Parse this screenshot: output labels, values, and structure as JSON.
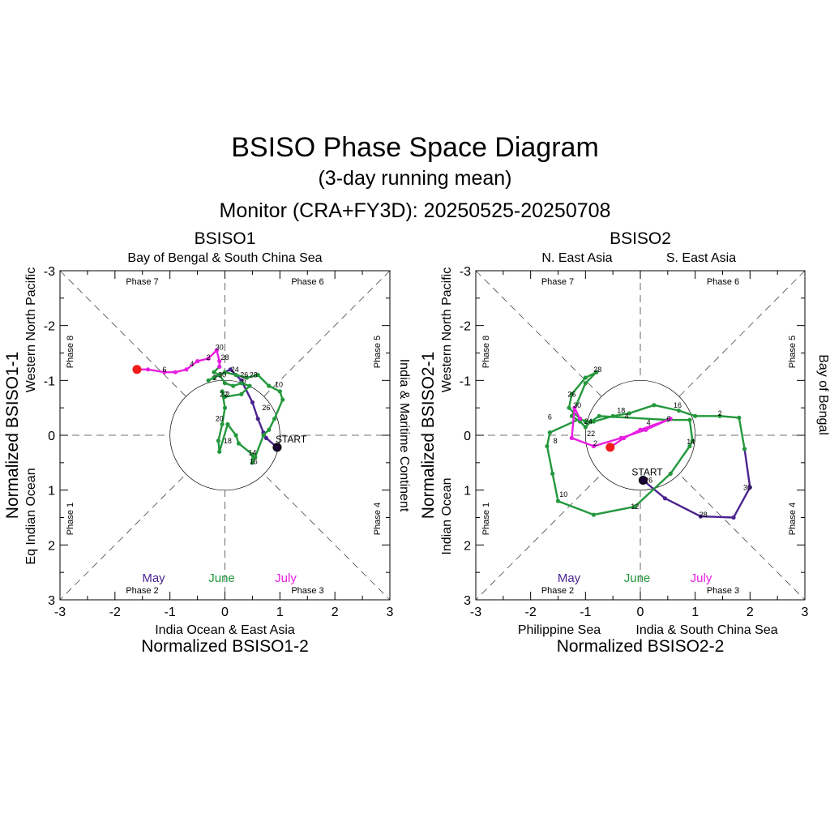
{
  "figure": {
    "title": "BSISO Phase Space Diagram",
    "subtitle": "(3-day running mean)",
    "monitor": "Monitor (CRA+FY3D): 20250525-20250708"
  },
  "colors": {
    "May": "#4b2391",
    "June": "#23983c",
    "July": "#e81ee0",
    "start": "#000000",
    "end": "#f21b1b"
  },
  "chart_data": [
    {
      "type": "scatter",
      "title": "BSISO1",
      "xlabel": "Normalized BSISO1-2",
      "ylabel": "Normalized BSISO1-1",
      "xlim": [
        -3,
        3
      ],
      "ylim": [
        -3,
        3
      ],
      "y_inverted": true,
      "xticks": [
        "-3",
        "-2",
        "-1",
        "0",
        "1",
        "2",
        "3"
      ],
      "yticks": [
        "-3",
        "-2",
        "-1",
        "0",
        "1",
        "2",
        "3"
      ],
      "regions": {
        "top_left": "Bay of Bengal & South China Sea",
        "top_right": "",
        "bottom_left": "India Ocean & East Asia",
        "bottom_right": "",
        "left": "Eq Indian Ocean",
        "left2": "Western North Pacific",
        "right": "India & Maritime Continent"
      },
      "phases": [
        "Phase 7",
        "Phase 6",
        "Phase 5",
        "Phase 4",
        "Phase 3",
        "Phase 2",
        "Phase 1",
        "Phase 8"
      ],
      "months": [
        "May",
        "June",
        "July"
      ],
      "start_label": "START",
      "series": [
        {
          "name": "May",
          "points": [
            [
              0.95,
              0.22
            ],
            [
              0.75,
              0.05
            ],
            [
              0.7,
              -0.05
            ],
            [
              0.6,
              -0.3
            ],
            [
              0.5,
              -0.6
            ],
            [
              0.3,
              -1.0
            ],
            [
              0.1,
              -1.2
            ],
            [
              -0.1,
              -1.1
            ],
            [
              -0.2,
              -1.05
            ]
          ]
        },
        {
          "name": "June",
          "points": [
            [
              -0.2,
              -1.05
            ],
            [
              -0.3,
              -1.0
            ],
            [
              0.0,
              -1.15
            ],
            [
              0.2,
              -1.1
            ],
            [
              0.4,
              -1.05
            ],
            [
              0.6,
              -1.1
            ],
            [
              0.8,
              -0.9
            ],
            [
              1.0,
              -0.8
            ],
            [
              1.05,
              -0.65
            ],
            [
              0.9,
              -0.3
            ],
            [
              0.8,
              -0.1
            ],
            [
              0.7,
              0.0
            ],
            [
              0.55,
              0.4
            ],
            [
              0.5,
              0.5
            ],
            [
              0.5,
              0.35
            ],
            [
              0.25,
              0.15
            ],
            [
              0.2,
              0.0
            ],
            [
              0.05,
              -0.2
            ],
            [
              -0.1,
              0.3
            ],
            [
              -0.12,
              0.1
            ],
            [
              -0.05,
              -0.2
            ],
            [
              0.0,
              -0.5
            ],
            [
              -0.05,
              -0.8
            ],
            [
              0.0,
              -0.7
            ],
            [
              0.3,
              -0.75
            ],
            [
              0.45,
              -0.9
            ],
            [
              0.3,
              -0.95
            ],
            [
              0.15,
              -0.9
            ],
            [
              0.0,
              -0.95
            ],
            [
              -0.1,
              -1.1
            ],
            [
              -0.2,
              -1.15
            ],
            [
              -0.1,
              -1.25
            ]
          ]
        },
        {
          "name": "July",
          "points": [
            [
              -0.1,
              -1.25
            ],
            [
              -0.1,
              -1.35
            ],
            [
              -0.15,
              -1.55
            ],
            [
              -0.3,
              -1.4
            ],
            [
              -0.5,
              -1.35
            ],
            [
              -0.7,
              -1.2
            ],
            [
              -0.9,
              -1.15
            ],
            [
              -1.1,
              -1.15
            ],
            [
              -1.4,
              -1.2
            ],
            [
              -1.6,
              -1.2
            ]
          ]
        }
      ],
      "day_labels": [
        {
          "t": "30",
          "x": -0.1,
          "y": -1.6
        },
        {
          "t": "28",
          "x": 0.0,
          "y": -1.42
        },
        {
          "t": "2",
          "x": -0.3,
          "y": -1.42
        },
        {
          "t": "4",
          "x": -0.6,
          "y": -1.3
        },
        {
          "t": "6",
          "x": -1.1,
          "y": -1.2
        },
        {
          "t": "24",
          "x": 0.18,
          "y": -1.2
        },
        {
          "t": "30",
          "x": -0.05,
          "y": -1.1
        },
        {
          "t": "2",
          "x": -0.18,
          "y": -1.05
        },
        {
          "t": "26",
          "x": 0.35,
          "y": -1.1
        },
        {
          "t": "28",
          "x": 0.52,
          "y": -1.1
        },
        {
          "t": "6",
          "x": 0.35,
          "y": -1.0
        },
        {
          "t": "10",
          "x": 0.98,
          "y": -0.92
        },
        {
          "t": "22",
          "x": -0.02,
          "y": -0.75
        },
        {
          "t": "2",
          "x": 0.05,
          "y": -0.75
        },
        {
          "t": "26",
          "x": 0.75,
          "y": -0.5
        },
        {
          "t": "20",
          "x": -0.1,
          "y": -0.3
        },
        {
          "t": "18",
          "x": 0.05,
          "y": 0.1
        },
        {
          "t": "14",
          "x": 0.5,
          "y": 0.32
        },
        {
          "t": "16",
          "x": 0.52,
          "y": 0.48
        }
      ]
    },
    {
      "type": "scatter",
      "title": "BSISO2",
      "xlabel": "Normalized BSISO2-2",
      "ylabel": "Normalized BSISO2-1",
      "xlim": [
        -3,
        3
      ],
      "ylim": [
        -3,
        3
      ],
      "y_inverted": true,
      "xticks": [
        "-3",
        "-2",
        "-1",
        "0",
        "1",
        "2",
        "3"
      ],
      "yticks": [
        "-3",
        "-2",
        "-1",
        "0",
        "1",
        "2",
        "3"
      ],
      "regions": {
        "top_left": "N. East Asia",
        "top_right": "S. East Asia",
        "bottom_left": "Philippine Sea",
        "bottom_right": "India & South China Sea",
        "left": "Indian Ocean",
        "left2": "Western North Pacific",
        "right": "Bay of Bengal"
      },
      "phases": [
        "Phase 7",
        "Phase 6",
        "Phase 5",
        "Phase 4",
        "Phase 3",
        "Phase 2",
        "Phase 1",
        "Phase 8"
      ],
      "months": [
        "May",
        "June",
        "July"
      ],
      "start_label": "START",
      "series": [
        {
          "name": "May",
          "points": [
            [
              0.05,
              0.82
            ],
            [
              0.45,
              1.15
            ],
            [
              1.1,
              1.48
            ],
            [
              1.7,
              1.5
            ],
            [
              2.0,
              0.95
            ],
            [
              1.9,
              0.25
            ]
          ]
        },
        {
          "name": "June",
          "points": [
            [
              1.9,
              0.25
            ],
            [
              1.8,
              -0.32
            ],
            [
              1.45,
              -0.35
            ],
            [
              1.0,
              -0.35
            ],
            [
              0.7,
              -0.45
            ],
            [
              0.25,
              -0.55
            ],
            [
              -0.2,
              -0.4
            ],
            [
              -0.5,
              -0.35
            ],
            [
              -0.85,
              -0.25
            ],
            [
              -1.0,
              -0.25
            ],
            [
              -1.1,
              -0.3
            ],
            [
              -1.3,
              -0.5
            ],
            [
              -1.25,
              -0.75
            ],
            [
              -1.0,
              -1.05
            ],
            [
              -0.8,
              -1.15
            ],
            [
              -1.0,
              -0.95
            ],
            [
              -1.25,
              -0.35
            ],
            [
              -1.1,
              -0.25
            ],
            [
              -1.0,
              -0.15
            ],
            [
              -0.9,
              -0.25
            ],
            [
              -0.75,
              -0.35
            ],
            [
              0.5,
              -0.28
            ],
            [
              0.9,
              -0.28
            ],
            [
              0.95,
              0.1
            ],
            [
              0.9,
              0.2
            ],
            [
              0.55,
              0.7
            ],
            [
              -0.1,
              1.3
            ],
            [
              -0.85,
              1.45
            ],
            [
              -1.5,
              1.2
            ],
            [
              -1.6,
              0.7
            ],
            [
              -1.7,
              0.2
            ],
            [
              -1.65,
              -0.05
            ],
            [
              -1.1,
              -0.3
            ]
          ]
        },
        {
          "name": "July",
          "points": [
            [
              -1.1,
              -0.3
            ],
            [
              -1.2,
              -0.5
            ],
            [
              -1.25,
              0.05
            ],
            [
              -0.85,
              0.2
            ],
            [
              -0.35,
              0.05
            ],
            [
              0.1,
              -0.1
            ],
            [
              0.55,
              -0.3
            ],
            [
              0.0,
              -0.1
            ],
            [
              -0.3,
              0.05
            ],
            [
              -0.55,
              0.22
            ]
          ]
        }
      ],
      "day_labels": [
        {
          "t": "28",
          "x": -0.78,
          "y": -1.2
        },
        {
          "t": "26",
          "x": -1.25,
          "y": -0.75
        },
        {
          "t": "30",
          "x": -1.15,
          "y": -0.55
        },
        {
          "t": "6",
          "x": -1.65,
          "y": -0.33
        },
        {
          "t": "18",
          "x": -0.35,
          "y": -0.45
        },
        {
          "t": "4",
          "x": -0.25,
          "y": -0.35
        },
        {
          "t": "16",
          "x": 0.68,
          "y": -0.55
        },
        {
          "t": "2",
          "x": 1.45,
          "y": -0.4
        },
        {
          "t": "24",
          "x": -0.95,
          "y": -0.25
        },
        {
          "t": "22",
          "x": -0.9,
          "y": -0.03
        },
        {
          "t": "4",
          "x": 0.15,
          "y": -0.23
        },
        {
          "t": "6",
          "x": 0.52,
          "y": -0.3
        },
        {
          "t": "2",
          "x": -0.82,
          "y": 0.15
        },
        {
          "t": "8",
          "x": -1.55,
          "y": 0.1
        },
        {
          "t": "14",
          "x": 0.92,
          "y": 0.12
        },
        {
          "t": "26",
          "x": 0.15,
          "y": 0.82
        },
        {
          "t": "30",
          "x": 1.95,
          "y": 0.95
        },
        {
          "t": "10",
          "x": -1.4,
          "y": 1.08
        },
        {
          "t": "12",
          "x": -0.1,
          "y": 1.3
        },
        {
          "t": "28",
          "x": 1.15,
          "y": 1.45
        }
      ]
    }
  ]
}
